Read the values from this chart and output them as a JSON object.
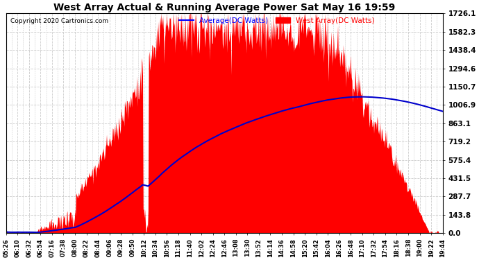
{
  "title": "West Array Actual & Running Average Power Sat May 16 19:59",
  "copyright": "Copyright 2020 Cartronics.com",
  "legend_avg": "Average(DC Watts)",
  "legend_west": "West Array(DC Watts)",
  "ymin": 0.0,
  "ymax": 1726.1,
  "yticks": [
    0.0,
    143.8,
    287.7,
    431.5,
    575.4,
    719.2,
    863.1,
    1006.9,
    1150.7,
    1294.6,
    1438.4,
    1582.3,
    1726.1
  ],
  "xtick_labels": [
    "05:26",
    "06:10",
    "06:32",
    "06:54",
    "07:16",
    "07:38",
    "08:00",
    "08:22",
    "08:44",
    "09:06",
    "09:28",
    "09:50",
    "10:12",
    "10:34",
    "10:56",
    "11:18",
    "11:40",
    "12:02",
    "12:24",
    "12:46",
    "13:08",
    "13:30",
    "13:52",
    "14:14",
    "14:36",
    "14:58",
    "15:20",
    "15:42",
    "16:04",
    "16:26",
    "16:48",
    "17:10",
    "17:32",
    "17:54",
    "18:16",
    "18:38",
    "19:00",
    "19:22",
    "19:44"
  ],
  "bg_color": "#ffffff",
  "plot_bg_color": "#ffffff",
  "grid_color": "#cccccc",
  "bar_color": "#ff0000",
  "line_color": "#0000cc",
  "title_color": "#000000",
  "copyright_color": "#000000",
  "legend_avg_color": "#0000ff",
  "legend_west_color": "#ff0000"
}
